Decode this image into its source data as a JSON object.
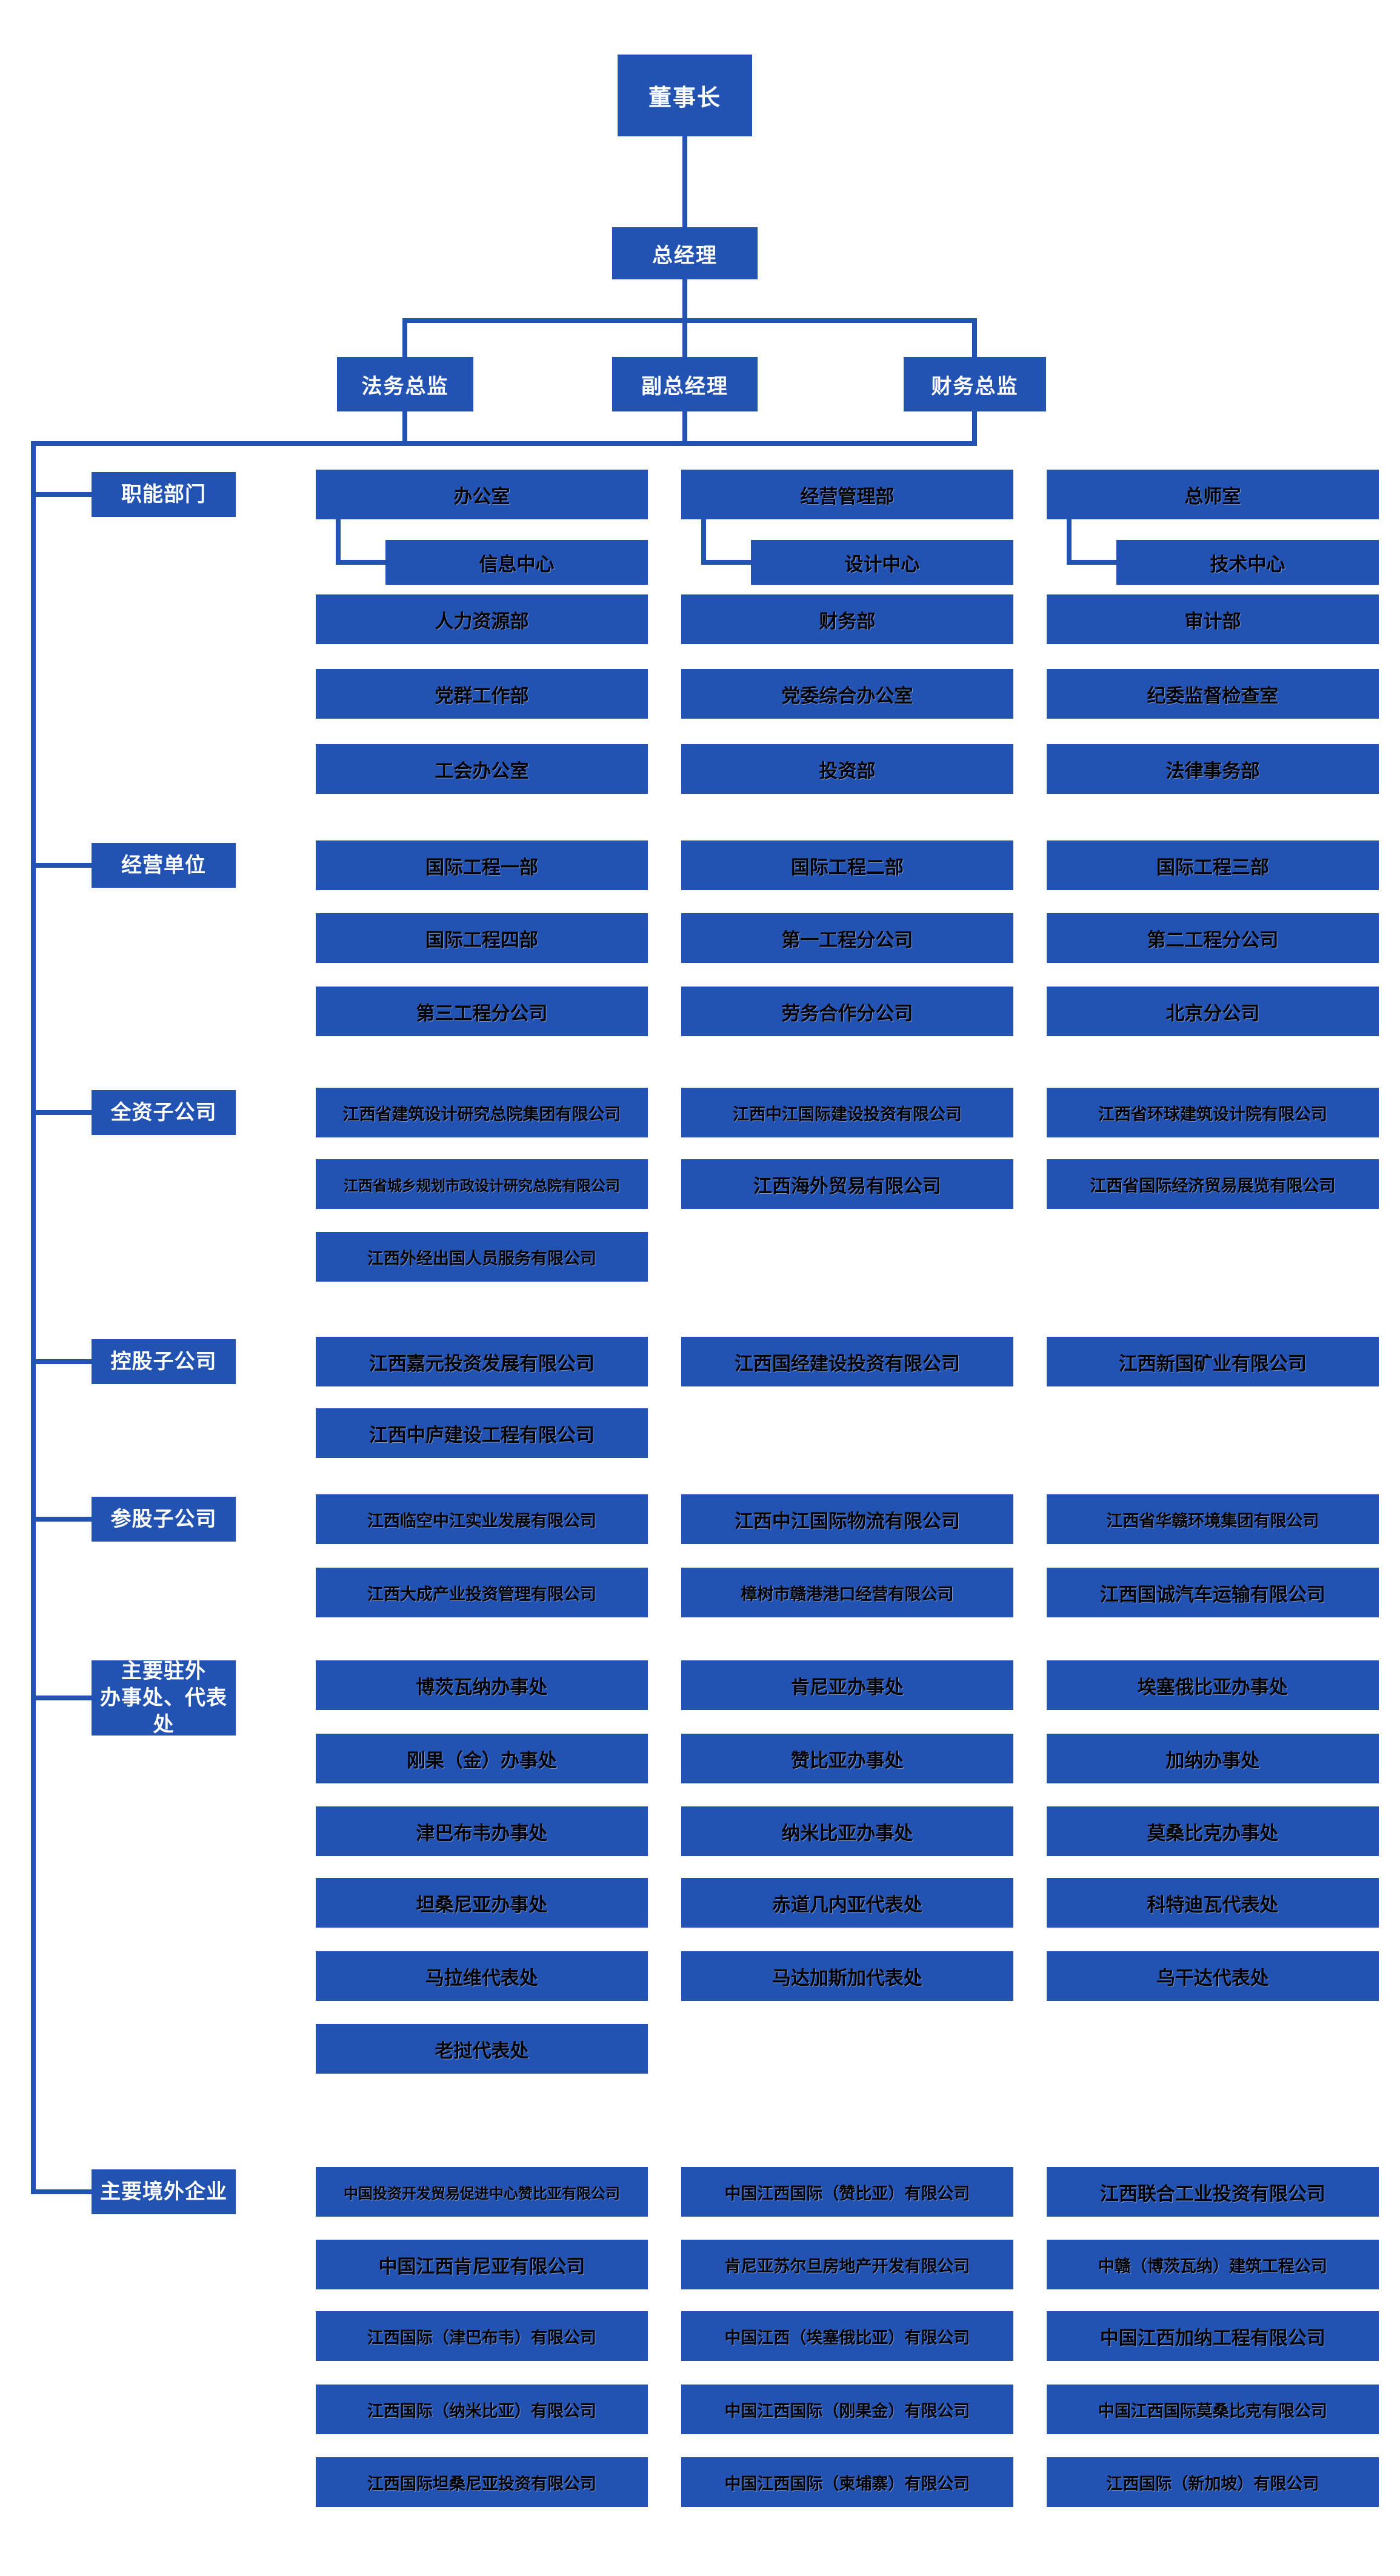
{
  "colors": {
    "primary": "#2252b2",
    "cell_text": "#000000",
    "top_text": "#ffffff"
  },
  "top": {
    "chairman": "董事长",
    "general_manager": "总经理",
    "directors": [
      "法务总监",
      "副总经理",
      "财务总监"
    ]
  },
  "sections": [
    {
      "key": "functional-departments",
      "label": "职能部门",
      "rows": [
        [
          {
            "name": "办公室",
            "sub": "信息中心"
          },
          {
            "name": "经营管理部",
            "sub": "设计中心"
          },
          {
            "name": "总师室",
            "sub": "技术中心"
          }
        ],
        [
          {
            "name": "人力资源部"
          },
          {
            "name": "财务部"
          },
          {
            "name": "审计部"
          }
        ],
        [
          {
            "name": "党群工作部"
          },
          {
            "name": "党委综合办公室"
          },
          {
            "name": "纪委监督检查室"
          }
        ],
        [
          {
            "name": "工会办公室"
          },
          {
            "name": "投资部"
          },
          {
            "name": "法律事务部"
          }
        ]
      ]
    },
    {
      "key": "business-units",
      "label": "经营单位",
      "rows": [
        [
          {
            "name": "国际工程一部"
          },
          {
            "name": "国际工程二部"
          },
          {
            "name": "国际工程三部"
          }
        ],
        [
          {
            "name": "国际工程四部"
          },
          {
            "name": "第一工程分公司"
          },
          {
            "name": "第二工程分公司"
          }
        ],
        [
          {
            "name": "第三工程分公司"
          },
          {
            "name": "劳务合作分公司"
          },
          {
            "name": "北京分公司"
          }
        ]
      ]
    },
    {
      "key": "wholly-owned-subsidiaries",
      "label": "全资子公司",
      "rows": [
        [
          {
            "name": "江西省建筑设计研究总院集团有限公司"
          },
          {
            "name": "江西中江国际建设投资有限公司"
          },
          {
            "name": "江西省环球建筑设计院有限公司"
          }
        ],
        [
          {
            "name": "江西省城乡规划市政设计研究总院有限公司"
          },
          {
            "name": "江西海外贸易有限公司"
          },
          {
            "name": "江西省国际经济贸易展览有限公司"
          }
        ],
        [
          {
            "name": "江西外经出国人员服务有限公司"
          }
        ]
      ]
    },
    {
      "key": "holding-subsidiaries",
      "label": "控股子公司",
      "rows": [
        [
          {
            "name": "江西嘉元投资发展有限公司"
          },
          {
            "name": "江西国经建设投资有限公司"
          },
          {
            "name": "江西新国矿业有限公司"
          }
        ],
        [
          {
            "name": "江西中庐建设工程有限公司"
          }
        ]
      ]
    },
    {
      "key": "equity-participation-subsidiaries",
      "label": "参股子公司",
      "rows": [
        [
          {
            "name": "江西临空中江实业发展有限公司"
          },
          {
            "name": "江西中江国际物流有限公司"
          },
          {
            "name": "江西省华赣环境集团有限公司"
          }
        ],
        [
          {
            "name": "江西大成产业投资管理有限公司"
          },
          {
            "name": "樟树市赣港港口经营有限公司"
          },
          {
            "name": "江西国诚汽车运输有限公司"
          }
        ]
      ]
    },
    {
      "key": "overseas-offices",
      "label": "主要驻外办事处、代表处",
      "label_lines": [
        "主要驻外",
        "办事处、代表处"
      ],
      "rows": [
        [
          {
            "name": "博茨瓦纳办事处"
          },
          {
            "name": "肯尼亚办事处"
          },
          {
            "name": "埃塞俄比亚办事处"
          }
        ],
        [
          {
            "name": "刚果（金）办事处"
          },
          {
            "name": "赞比亚办事处"
          },
          {
            "name": "加纳办事处"
          }
        ],
        [
          {
            "name": "津巴布韦办事处"
          },
          {
            "name": "纳米比亚办事处"
          },
          {
            "name": "莫桑比克办事处"
          }
        ],
        [
          {
            "name": "坦桑尼亚办事处"
          },
          {
            "name": "赤道几内亚代表处"
          },
          {
            "name": "科特迪瓦代表处"
          }
        ],
        [
          {
            "name": "马拉维代表处"
          },
          {
            "name": "马达加斯加代表处"
          },
          {
            "name": "乌干达代表处"
          }
        ],
        [
          {
            "name": "老挝代表处"
          }
        ]
      ]
    },
    {
      "key": "overseas-enterprises",
      "label": "主要境外企业",
      "rows": [
        [
          {
            "name": "中国投资开发贸易促进中心赞比亚有限公司"
          },
          {
            "name": "中国江西国际（赞比亚）有限公司"
          },
          {
            "name": "江西联合工业投资有限公司"
          }
        ],
        [
          {
            "name": "中国江西肯尼亚有限公司"
          },
          {
            "name": "肯尼亚苏尔旦房地产开发有限公司"
          },
          {
            "name": "中赣（博茨瓦纳）建筑工程公司"
          }
        ],
        [
          {
            "name": "江西国际（津巴布韦）有限公司"
          },
          {
            "name": "中国江西（埃塞俄比亚）有限公司"
          },
          {
            "name": "中国江西加纳工程有限公司"
          }
        ],
        [
          {
            "name": "江西国际（纳米比亚）有限公司"
          },
          {
            "name": "中国江西国际（刚果金）有限公司"
          },
          {
            "name": "中国江西国际莫桑比克有限公司"
          }
        ],
        [
          {
            "name": "江西国际坦桑尼亚投资有限公司"
          },
          {
            "name": "中国江西国际（柬埔寨）有限公司"
          },
          {
            "name": "江西国际（新加坡）有限公司"
          }
        ]
      ]
    }
  ]
}
